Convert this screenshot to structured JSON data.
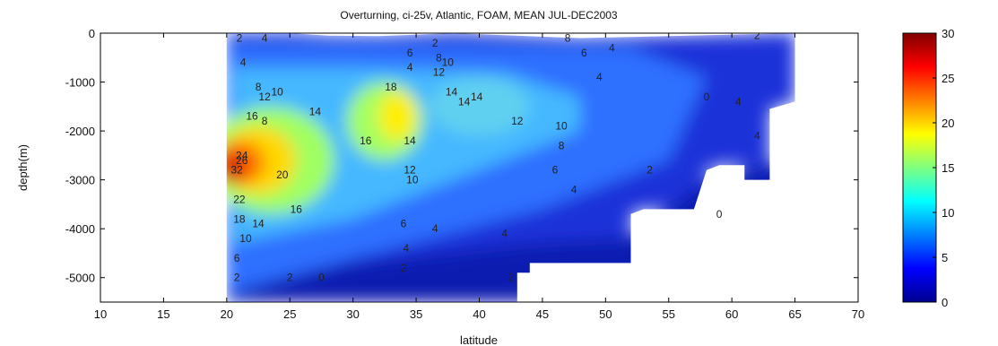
{
  "chart_data": {
    "type": "heatmap",
    "title": "Overturning, ci-25v, Atlantic, FOAM, MEAN JUL-DEC2003",
    "xlabel": "latitude",
    "ylabel": "depth(m)",
    "xlim": [
      10,
      70
    ],
    "ylim": [
      -5500,
      0
    ],
    "x_ticks": [
      10,
      15,
      20,
      25,
      30,
      35,
      40,
      45,
      50,
      55,
      60,
      65,
      70
    ],
    "y_ticks": [
      0,
      -1000,
      -2000,
      -3000,
      -4000,
      -5000
    ],
    "colorbar": {
      "min": 0,
      "max": 30,
      "ticks": [
        0,
        5,
        10,
        15,
        20,
        25,
        30
      ],
      "colormap": "jet"
    },
    "data_extent_lat": [
      20,
      65
    ],
    "field_centers": [
      {
        "lat": 20.5,
        "depth": -2700,
        "value": 30
      },
      {
        "lat": 24,
        "depth": -2600,
        "value": 20
      },
      {
        "lat": 33.5,
        "depth": -1700,
        "value": 20
      },
      {
        "lat": 40,
        "depth": -1600,
        "value": 14
      }
    ],
    "contour_labels": [
      {
        "lat": 21,
        "depth": -100,
        "text": "2"
      },
      {
        "lat": 23,
        "depth": -100,
        "text": "4"
      },
      {
        "lat": 21.3,
        "depth": -600,
        "text": "4"
      },
      {
        "lat": 22.5,
        "depth": -1100,
        "text": "8"
      },
      {
        "lat": 23,
        "depth": -1300,
        "text": "12"
      },
      {
        "lat": 24,
        "depth": -1200,
        "text": "10"
      },
      {
        "lat": 22,
        "depth": -1700,
        "text": "16"
      },
      {
        "lat": 23,
        "depth": -1800,
        "text": "8"
      },
      {
        "lat": 27,
        "depth": -1600,
        "text": "14"
      },
      {
        "lat": 21.2,
        "depth": -2500,
        "text": "24"
      },
      {
        "lat": 21.2,
        "depth": -2600,
        "text": "26"
      },
      {
        "lat": 20.8,
        "depth": -2800,
        "text": "32"
      },
      {
        "lat": 24.4,
        "depth": -2900,
        "text": "20"
      },
      {
        "lat": 21,
        "depth": -3400,
        "text": "22"
      },
      {
        "lat": 21,
        "depth": -3800,
        "text": "18"
      },
      {
        "lat": 22.5,
        "depth": -3900,
        "text": "14"
      },
      {
        "lat": 25.5,
        "depth": -3600,
        "text": "16"
      },
      {
        "lat": 21.5,
        "depth": -4200,
        "text": "10"
      },
      {
        "lat": 20.8,
        "depth": -4600,
        "text": "6"
      },
      {
        "lat": 20.8,
        "depth": -5000,
        "text": "2"
      },
      {
        "lat": 25,
        "depth": -5000,
        "text": "2"
      },
      {
        "lat": 27.5,
        "depth": -5000,
        "text": "0"
      },
      {
        "lat": 33,
        "depth": -1100,
        "text": "18"
      },
      {
        "lat": 31,
        "depth": -2200,
        "text": "16"
      },
      {
        "lat": 34.5,
        "depth": -2200,
        "text": "14"
      },
      {
        "lat": 34.5,
        "depth": -2800,
        "text": "12"
      },
      {
        "lat": 34.7,
        "depth": -3000,
        "text": "10"
      },
      {
        "lat": 34,
        "depth": -3900,
        "text": "6"
      },
      {
        "lat": 34.2,
        "depth": -4400,
        "text": "4"
      },
      {
        "lat": 34,
        "depth": -4800,
        "text": "2"
      },
      {
        "lat": 34.5,
        "depth": -400,
        "text": "6"
      },
      {
        "lat": 34.5,
        "depth": -700,
        "text": "4"
      },
      {
        "lat": 36.5,
        "depth": -200,
        "text": "2"
      },
      {
        "lat": 36.8,
        "depth": -500,
        "text": "8"
      },
      {
        "lat": 37.5,
        "depth": -600,
        "text": "10"
      },
      {
        "lat": 36.8,
        "depth": -800,
        "text": "12"
      },
      {
        "lat": 37.8,
        "depth": -1200,
        "text": "14"
      },
      {
        "lat": 38.8,
        "depth": -1400,
        "text": "14"
      },
      {
        "lat": 39.8,
        "depth": -1300,
        "text": "14"
      },
      {
        "lat": 36.5,
        "depth": -4000,
        "text": "4"
      },
      {
        "lat": 42,
        "depth": -4100,
        "text": "4"
      },
      {
        "lat": 43,
        "depth": -1800,
        "text": "12"
      },
      {
        "lat": 46.5,
        "depth": -1900,
        "text": "10"
      },
      {
        "lat": 46.5,
        "depth": -2300,
        "text": "8"
      },
      {
        "lat": 46,
        "depth": -2800,
        "text": "6"
      },
      {
        "lat": 47.5,
        "depth": -3200,
        "text": "4"
      },
      {
        "lat": 42.5,
        "depth": -5000,
        "text": "2"
      },
      {
        "lat": 47,
        "depth": -100,
        "text": "8"
      },
      {
        "lat": 48.3,
        "depth": -400,
        "text": "6"
      },
      {
        "lat": 50.5,
        "depth": -300,
        "text": "4"
      },
      {
        "lat": 49.5,
        "depth": -900,
        "text": "4"
      },
      {
        "lat": 53.5,
        "depth": -2800,
        "text": "2"
      },
      {
        "lat": 58,
        "depth": -1300,
        "text": "0"
      },
      {
        "lat": 60.5,
        "depth": -1400,
        "text": "4"
      },
      {
        "lat": 62,
        "depth": -2100,
        "text": "4"
      },
      {
        "lat": 59,
        "depth": -3700,
        "text": "0"
      },
      {
        "lat": 62,
        "depth": -50,
        "text": "2"
      }
    ]
  }
}
